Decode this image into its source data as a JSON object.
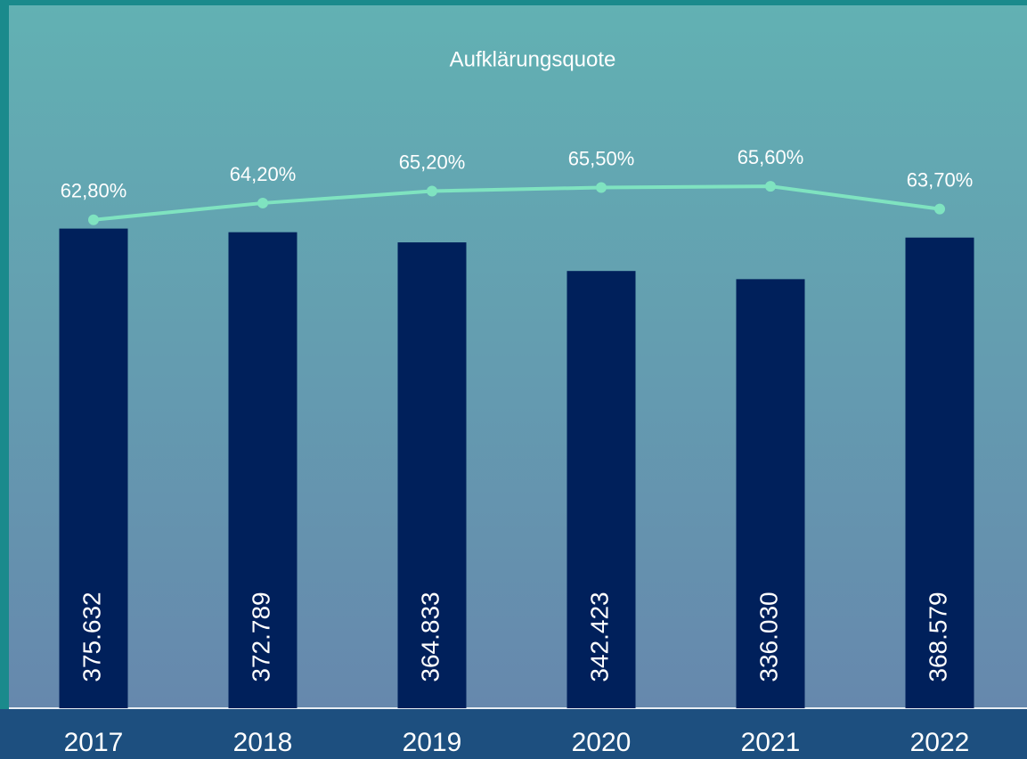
{
  "chart_data": {
    "type": "combo",
    "title": "Aufklärungsquote",
    "categories": [
      "2017",
      "2018",
      "2019",
      "2020",
      "2021",
      "2022"
    ],
    "ylim": [
      0,
      450000
    ],
    "y2lim": [
      22,
      70
    ],
    "series": [
      {
        "type": "bar",
        "color": "#00205b",
        "values": [
          375632,
          372789,
          364833,
          342423,
          336030,
          368579
        ],
        "value_labels": [
          "375.632",
          "372.789",
          "364.833",
          "342.423",
          "336.030",
          "368.579"
        ]
      },
      {
        "type": "line",
        "axis": "y2",
        "color": "#7fe3c0",
        "values": [
          62.8,
          64.2,
          65.2,
          65.5,
          65.6,
          63.7
        ],
        "value_labels": [
          "62,80%",
          "64,20%",
          "65,20%",
          "65,50%",
          "65,60%",
          "63,70%"
        ]
      }
    ]
  }
}
